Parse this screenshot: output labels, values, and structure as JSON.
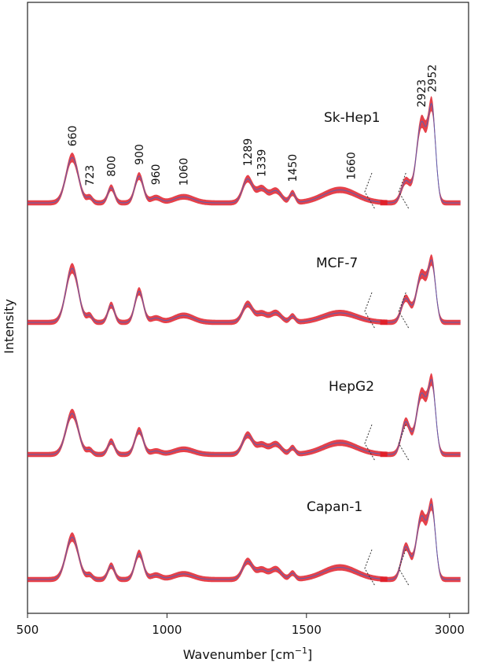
{
  "chart_data": {
    "type": "line",
    "xlabel": "Wavenumber [cm",
    "xlabel_sup": "−1",
    "xlabel_close": "]",
    "ylabel": "Intensity",
    "x_ticks": [
      500,
      1000,
      1500,
      3000
    ],
    "axis_break": {
      "from": 1800,
      "to": 2800
    },
    "colors": {
      "mean": "#5b5fb0",
      "band": "#e0202a"
    },
    "peak_labels": [
      "660",
      "723",
      "800",
      "900",
      "960",
      "1060",
      "1289",
      "1339",
      "1450",
      "1660",
      "2923",
      "2952"
    ],
    "series": [
      {
        "name": "Sk-Hep1",
        "offset": 3,
        "peaks": [
          [
            660,
            1.05,
            22
          ],
          [
            723,
            0.12,
            10
          ],
          [
            800,
            0.35,
            12
          ],
          [
            900,
            0.62,
            15
          ],
          [
            960,
            0.12,
            18
          ],
          [
            1060,
            0.14,
            35
          ],
          [
            1289,
            0.55,
            18
          ],
          [
            1339,
            0.32,
            18
          ],
          [
            1390,
            0.28,
            20
          ],
          [
            1450,
            0.22,
            10
          ],
          [
            1620,
            0.3,
            60
          ],
          [
            2880,
            0.5,
            12
          ],
          [
            2923,
            1.85,
            14
          ],
          [
            2952,
            2.05,
            10
          ]
        ]
      },
      {
        "name": "MCF-7",
        "offset": 2,
        "peaks": [
          [
            660,
            1.25,
            22
          ],
          [
            723,
            0.15,
            10
          ],
          [
            800,
            0.4,
            12
          ],
          [
            900,
            0.72,
            15
          ],
          [
            960,
            0.1,
            18
          ],
          [
            1060,
            0.16,
            35
          ],
          [
            1289,
            0.42,
            18
          ],
          [
            1339,
            0.2,
            18
          ],
          [
            1390,
            0.22,
            20
          ],
          [
            1450,
            0.14,
            10
          ],
          [
            1620,
            0.22,
            60
          ],
          [
            2880,
            0.55,
            12
          ],
          [
            2923,
            1.1,
            14
          ],
          [
            2952,
            1.3,
            10
          ]
        ]
      },
      {
        "name": "HepG2",
        "offset": 1,
        "peaks": [
          [
            660,
            0.95,
            22
          ],
          [
            723,
            0.1,
            10
          ],
          [
            800,
            0.3,
            12
          ],
          [
            900,
            0.55,
            15
          ],
          [
            960,
            0.08,
            18
          ],
          [
            1060,
            0.12,
            35
          ],
          [
            1289,
            0.45,
            18
          ],
          [
            1339,
            0.22,
            18
          ],
          [
            1390,
            0.24,
            20
          ],
          [
            1450,
            0.15,
            10
          ],
          [
            1620,
            0.27,
            60
          ],
          [
            2880,
            0.75,
            12
          ],
          [
            2923,
            1.4,
            14
          ],
          [
            2952,
            1.55,
            10
          ]
        ]
      },
      {
        "name": "Capan-1",
        "offset": 0,
        "peaks": [
          [
            660,
            0.98,
            22
          ],
          [
            723,
            0.1,
            10
          ],
          [
            800,
            0.32,
            12
          ],
          [
            900,
            0.6,
            15
          ],
          [
            960,
            0.1,
            18
          ],
          [
            1060,
            0.13,
            35
          ],
          [
            1289,
            0.42,
            18
          ],
          [
            1339,
            0.22,
            18
          ],
          [
            1390,
            0.24,
            20
          ],
          [
            1450,
            0.14,
            10
          ],
          [
            1620,
            0.28,
            60
          ],
          [
            2880,
            0.75,
            12
          ],
          [
            2923,
            1.45,
            14
          ],
          [
            2952,
            1.55,
            10
          ]
        ]
      }
    ]
  }
}
